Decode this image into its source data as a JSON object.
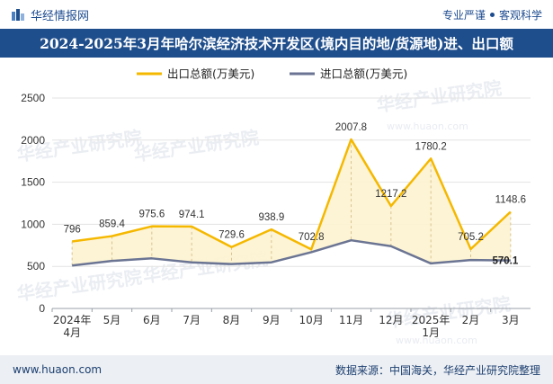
{
  "header": {
    "brand_name": "华经情报网",
    "tagline_left": "专业严谨",
    "tagline_right": "客观科学"
  },
  "title": "2024-2025年3月年哈尔滨经济技术开发区(境内目的地/货源地)进、出口额",
  "watermark": "华经产业研究院",
  "watermark_url": "www.huaon.com",
  "chart_data": {
    "type": "area",
    "categories": [
      [
        "2024年",
        "4月"
      ],
      [
        "5月"
      ],
      [
        "6月"
      ],
      [
        "7月"
      ],
      [
        "8月"
      ],
      [
        "9月"
      ],
      [
        "10月"
      ],
      [
        "11月"
      ],
      [
        "12月"
      ],
      [
        "2025年",
        "1月"
      ],
      [
        "2月"
      ],
      [
        "3月"
      ]
    ],
    "series": [
      {
        "name": "出口总额(万美元)",
        "color": "#f5b800",
        "fill": "#fdf3d0",
        "values": [
          796,
          859.4,
          975.6,
          974.1,
          729.6,
          938.9,
          702.8,
          2007.8,
          1217.2,
          1780.2,
          705.2,
          1148.6
        ],
        "labels": [
          "796",
          "859.4",
          "975.6",
          "974.1",
          "729.6",
          "938.9",
          "702.8",
          "2007.8",
          "1217.2",
          "1780.2",
          "705.2",
          "1148.6"
        ]
      },
      {
        "name": "进口总额(万美元)",
        "color": "#6b7593",
        "values": [
          510,
          565,
          595,
          548,
          527,
          548,
          668,
          810,
          740,
          535,
          575,
          570.1
        ],
        "labels": [
          "",
          "",
          "",
          "",
          "",
          "",
          "",
          "",
          "",
          "",
          "",
          "570.1"
        ]
      }
    ],
    "y_ticks": [
      "0",
      "500",
      "1000",
      "1500",
      "2000",
      "2500"
    ],
    "ylim": [
      0,
      2500
    ],
    "legend_position": "top-center"
  },
  "footer": {
    "website": "www.huaon.com",
    "source": "数据来源：中国海关，华经产业研究院整理"
  }
}
